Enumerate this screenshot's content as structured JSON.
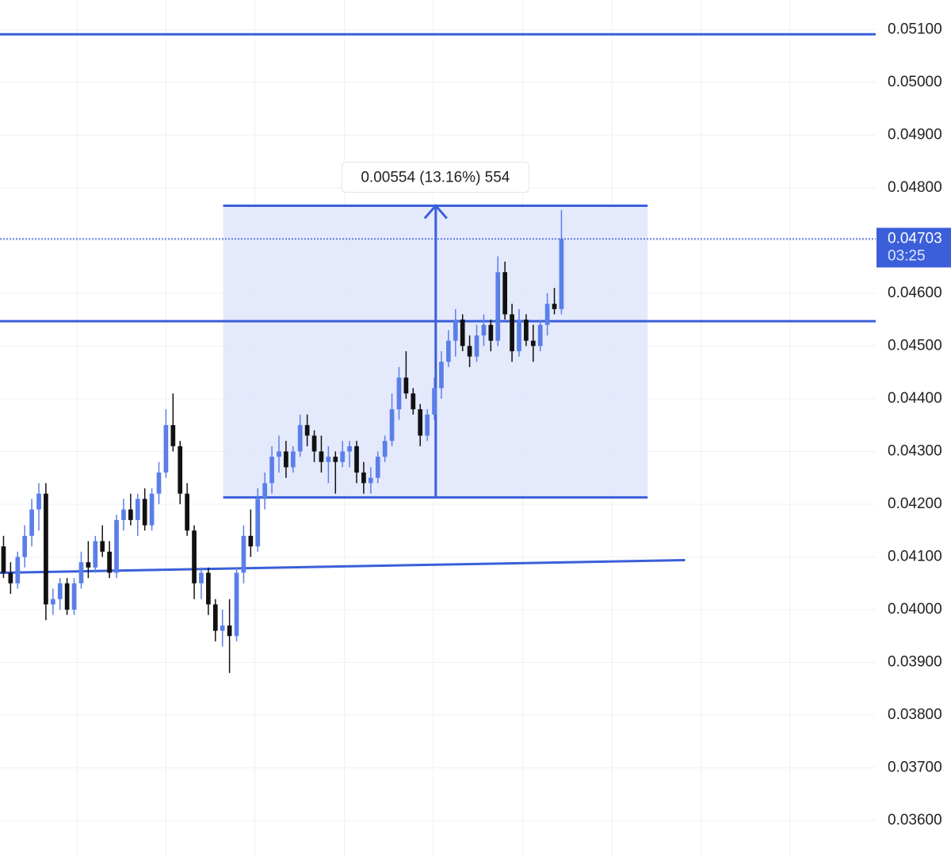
{
  "chart_data": {
    "type": "candlestick",
    "ylim": [
      0.03531,
      0.05156
    ],
    "xlim": [
      0,
      124
    ],
    "yticks": [
      {
        "value": 0.051,
        "label": "0.05100"
      },
      {
        "value": 0.05,
        "label": "0.05000"
      },
      {
        "value": 0.049,
        "label": "0.04900"
      },
      {
        "value": 0.048,
        "label": "0.04800"
      },
      {
        "value": 0.047,
        "label": "0.04700"
      },
      {
        "value": 0.046,
        "label": "0.04600"
      },
      {
        "value": 0.045,
        "label": "0.04500"
      },
      {
        "value": 0.044,
        "label": "0.04400"
      },
      {
        "value": 0.043,
        "label": "0.04300"
      },
      {
        "value": 0.042,
        "label": "0.04200"
      },
      {
        "value": 0.041,
        "label": "0.04100"
      },
      {
        "value": 0.04,
        "label": "0.04000"
      },
      {
        "value": 0.039,
        "label": "0.03900"
      },
      {
        "value": 0.038,
        "label": "0.03800"
      },
      {
        "value": 0.037,
        "label": "0.03700"
      },
      {
        "value": 0.036,
        "label": "0.03600"
      }
    ],
    "grid": true,
    "up_color": "#5b7fe8",
    "down_color": "#111111",
    "line_color": "#3a5fd9",
    "box_color": "#dfe5fb",
    "ohlc": [
      [
        0.0412,
        0.0414,
        0.0406,
        0.0407
      ],
      [
        0.0407,
        0.0409,
        0.0403,
        0.0405
      ],
      [
        0.0405,
        0.0411,
        0.0404,
        0.041
      ],
      [
        0.041,
        0.0416,
        0.0408,
        0.0414
      ],
      [
        0.0414,
        0.0421,
        0.0412,
        0.0419
      ],
      [
        0.0419,
        0.0424,
        0.0415,
        0.0422
      ],
      [
        0.0422,
        0.0424,
        0.0398,
        0.0401
      ],
      [
        0.0401,
        0.0404,
        0.0399,
        0.0402
      ],
      [
        0.0402,
        0.0406,
        0.04,
        0.0405
      ],
      [
        0.0405,
        0.0406,
        0.0399,
        0.04
      ],
      [
        0.04,
        0.0406,
        0.0399,
        0.0405
      ],
      [
        0.0405,
        0.0411,
        0.0404,
        0.0409
      ],
      [
        0.0409,
        0.0413,
        0.0406,
        0.0408
      ],
      [
        0.0408,
        0.0414,
        0.0407,
        0.0413
      ],
      [
        0.0413,
        0.0416,
        0.041,
        0.0411
      ],
      [
        0.0411,
        0.0413,
        0.0406,
        0.0407
      ],
      [
        0.0407,
        0.0418,
        0.0406,
        0.0417
      ],
      [
        0.0417,
        0.0421,
        0.0415,
        0.0419
      ],
      [
        0.0419,
        0.0422,
        0.0416,
        0.0417
      ],
      [
        0.0417,
        0.0422,
        0.0414,
        0.0421
      ],
      [
        0.0421,
        0.0423,
        0.0415,
        0.0416
      ],
      [
        0.0416,
        0.0423,
        0.0415,
        0.0422
      ],
      [
        0.0422,
        0.0428,
        0.042,
        0.0426
      ],
      [
        0.0426,
        0.0438,
        0.0425,
        0.0435
      ],
      [
        0.0435,
        0.0441,
        0.043,
        0.0431
      ],
      [
        0.0431,
        0.0432,
        0.042,
        0.0422
      ],
      [
        0.0422,
        0.0424,
        0.0414,
        0.0415
      ],
      [
        0.0415,
        0.0416,
        0.0402,
        0.0405
      ],
      [
        0.0405,
        0.0408,
        0.0402,
        0.0407
      ],
      [
        0.0407,
        0.0408,
        0.0399,
        0.0401
      ],
      [
        0.0401,
        0.0402,
        0.0394,
        0.0396
      ],
      [
        0.0396,
        0.04,
        0.0393,
        0.0397
      ],
      [
        0.0397,
        0.0402,
        0.0388,
        0.0395
      ],
      [
        0.0395,
        0.0408,
        0.0394,
        0.0407
      ],
      [
        0.0407,
        0.0416,
        0.0405,
        0.0414
      ],
      [
        0.0414,
        0.0419,
        0.041,
        0.0412
      ],
      [
        0.0412,
        0.0423,
        0.0411,
        0.0421
      ],
      [
        0.0421,
        0.0426,
        0.0419,
        0.0424
      ],
      [
        0.0424,
        0.0431,
        0.0422,
        0.0429
      ],
      [
        0.0429,
        0.0433,
        0.0426,
        0.043
      ],
      [
        0.043,
        0.0432,
        0.0425,
        0.0427
      ],
      [
        0.0427,
        0.0431,
        0.0426,
        0.043
      ],
      [
        0.043,
        0.0437,
        0.0429,
        0.0435
      ],
      [
        0.0435,
        0.0437,
        0.0431,
        0.0433
      ],
      [
        0.0433,
        0.0434,
        0.0428,
        0.043
      ],
      [
        0.043,
        0.0433,
        0.0426,
        0.0428
      ],
      [
        0.0428,
        0.0431,
        0.0424,
        0.0429
      ],
      [
        0.0429,
        0.043,
        0.0422,
        0.0428
      ],
      [
        0.0428,
        0.0432,
        0.0427,
        0.043
      ],
      [
        0.043,
        0.0432,
        0.0427,
        0.0431
      ],
      [
        0.0431,
        0.0432,
        0.0424,
        0.0426
      ],
      [
        0.0426,
        0.0428,
        0.0422,
        0.0424
      ],
      [
        0.0424,
        0.0427,
        0.0422,
        0.0425
      ],
      [
        0.0425,
        0.043,
        0.0424,
        0.0429
      ],
      [
        0.0429,
        0.0433,
        0.0428,
        0.0432
      ],
      [
        0.0432,
        0.0441,
        0.0431,
        0.0438
      ],
      [
        0.0438,
        0.0446,
        0.0436,
        0.0444
      ],
      [
        0.0444,
        0.0449,
        0.044,
        0.0441
      ],
      [
        0.0441,
        0.0442,
        0.0437,
        0.0438
      ],
      [
        0.0438,
        0.0439,
        0.0431,
        0.0433
      ],
      [
        0.0433,
        0.0438,
        0.0432,
        0.0437
      ],
      [
        0.0437,
        0.0444,
        0.0436,
        0.0442
      ],
      [
        0.0442,
        0.0449,
        0.044,
        0.0447
      ],
      [
        0.0447,
        0.0453,
        0.0446,
        0.0451
      ],
      [
        0.0451,
        0.0457,
        0.0448,
        0.0455
      ],
      [
        0.0455,
        0.0456,
        0.0449,
        0.045
      ],
      [
        0.045,
        0.0452,
        0.0446,
        0.0448
      ],
      [
        0.0448,
        0.0454,
        0.0447,
        0.0452
      ],
      [
        0.0452,
        0.0456,
        0.045,
        0.0454
      ],
      [
        0.0454,
        0.0455,
        0.0449,
        0.0451
      ],
      [
        0.0451,
        0.0467,
        0.045,
        0.0464
      ],
      [
        0.0464,
        0.0466,
        0.0455,
        0.0456
      ],
      [
        0.0456,
        0.0458,
        0.0447,
        0.0449
      ],
      [
        0.0449,
        0.0457,
        0.0448,
        0.0455
      ],
      [
        0.0455,
        0.0456,
        0.045,
        0.0451
      ],
      [
        0.0451,
        0.0454,
        0.0447,
        0.045
      ],
      [
        0.045,
        0.0455,
        0.0449,
        0.0454
      ],
      [
        0.0454,
        0.046,
        0.0452,
        0.0458
      ],
      [
        0.0458,
        0.0461,
        0.0456,
        0.0457
      ],
      [
        0.0457,
        0.04758,
        0.0456,
        0.04703
      ]
    ],
    "hlines": [
      0.05091,
      0.04547
    ],
    "trendline": {
      "x": [
        0,
        97
      ],
      "y": [
        0.0407,
        0.04094
      ]
    },
    "measure": {
      "x": [
        31.6,
        91.7
      ],
      "y": [
        0.04213,
        0.04766
      ],
      "arrow_x": 61.7,
      "label": "0.00554 (13.16%) 554"
    },
    "price": {
      "value": 0.04703,
      "label": "0.04703",
      "countdown": "03:25"
    }
  }
}
